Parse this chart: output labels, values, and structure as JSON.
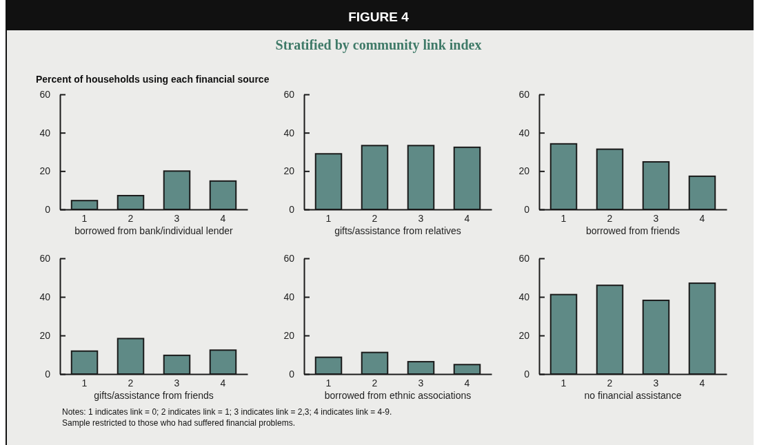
{
  "chart_data": [
    {
      "type": "bar",
      "ylabel": "Percent of households using each financial source",
      "xlabel": "borrowed from bank/individual lender",
      "categories": [
        "1",
        "2",
        "3",
        "4"
      ],
      "values": [
        4.6,
        7.2,
        20,
        14.8
      ],
      "color": "#5f8a86",
      "ylim": [
        0,
        60
      ],
      "yticks": [
        0,
        20,
        40,
        60
      ]
    },
    {
      "type": "bar",
      "title": "FIGURE 4",
      "subtitle": "Stratified by community link index",
      "xlabel": "gifts/assistance from relatives",
      "categories": [
        "1",
        "2",
        "3",
        "4"
      ],
      "values": [
        29,
        33.3,
        33.3,
        32.4
      ],
      "color": "#5f8a86",
      "ylim": [
        0,
        60
      ],
      "yticks": [
        0,
        20,
        40,
        60
      ]
    },
    {
      "type": "bar",
      "xlabel": "borrowed from friends",
      "categories": [
        "1",
        "2",
        "3",
        "4"
      ],
      "values": [
        34.2,
        31.4,
        24.8,
        17.3
      ],
      "color": "#5f8a86",
      "ylim": [
        0,
        60
      ],
      "yticks": [
        0,
        20,
        40,
        60
      ]
    },
    {
      "type": "bar",
      "annotations": [
        "Notes: 1 indicates link = 0; 2 indicates link = 1; 3 indicates link = 2,3; 4 indicates link = 4-9.",
        "Sample restricted to those who had suffered financial problems."
      ],
      "xlabel": "gifts/assistance from friends",
      "categories": [
        "1",
        "2",
        "3",
        "4"
      ],
      "values": [
        11.9,
        18.4,
        9.7,
        12.4
      ],
      "color": "#5f8a86",
      "ylim": [
        0,
        60
      ],
      "yticks": [
        0,
        20,
        40,
        60
      ]
    },
    {
      "type": "bar",
      "xlabel": "borrowed from ethnic associations",
      "categories": [
        "1",
        "2",
        "3",
        "4"
      ],
      "values": [
        8.7,
        11.2,
        6.4,
        4.9
      ],
      "color": "#5f8a86",
      "ylim": [
        0,
        60
      ],
      "yticks": [
        0,
        20,
        40,
        60
      ]
    },
    {
      "type": "bar",
      "xlabel": "no financial assistance",
      "categories": [
        "1",
        "2",
        "3",
        "4"
      ],
      "values": [
        41.2,
        46,
        38.2,
        47.1
      ],
      "color": "#5f8a86",
      "ylim": [
        0,
        60
      ],
      "yticks": [
        0,
        20,
        40,
        60
      ]
    }
  ]
}
